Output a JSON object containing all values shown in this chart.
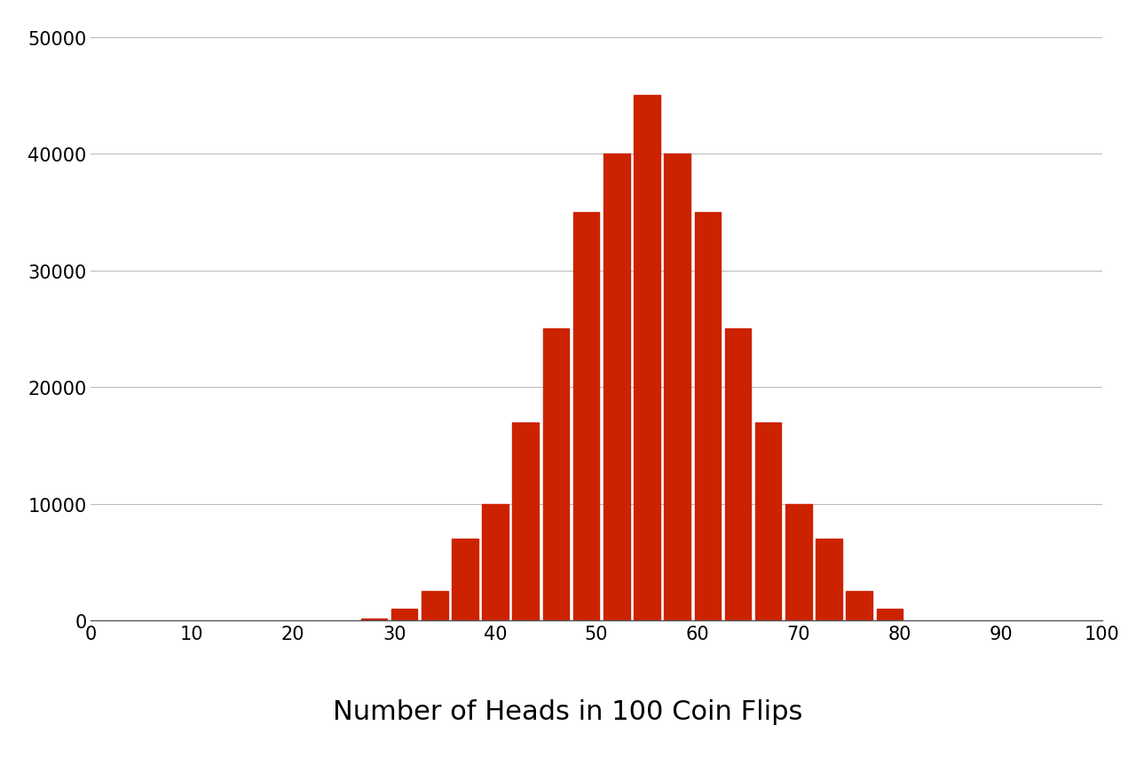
{
  "title": "Number of Heads in 100 Coin Flips",
  "bar_color": "#CC2200",
  "background_color": "#ffffff",
  "xlim": [
    0,
    100
  ],
  "ylim": [
    0,
    50000
  ],
  "yticks": [
    0,
    10000,
    20000,
    30000,
    40000,
    50000
  ],
  "xticks": [
    0,
    10,
    20,
    30,
    40,
    50,
    60,
    70,
    80,
    90,
    100
  ],
  "title_fontsize": 22,
  "bar_positions": [
    28,
    31,
    34,
    37,
    40,
    43,
    46,
    49,
    52,
    55,
    58,
    61,
    64,
    67,
    70,
    73,
    76,
    79
  ],
  "bar_heights": [
    200,
    1000,
    2500,
    7000,
    10000,
    17000,
    25000,
    35000,
    40000,
    45000,
    40000,
    35000,
    25000,
    17000,
    10000,
    7000,
    2500,
    1000
  ],
  "bar_width": 2.6,
  "grid_color": "#bbbbbb",
  "grid_linewidth": 0.8
}
